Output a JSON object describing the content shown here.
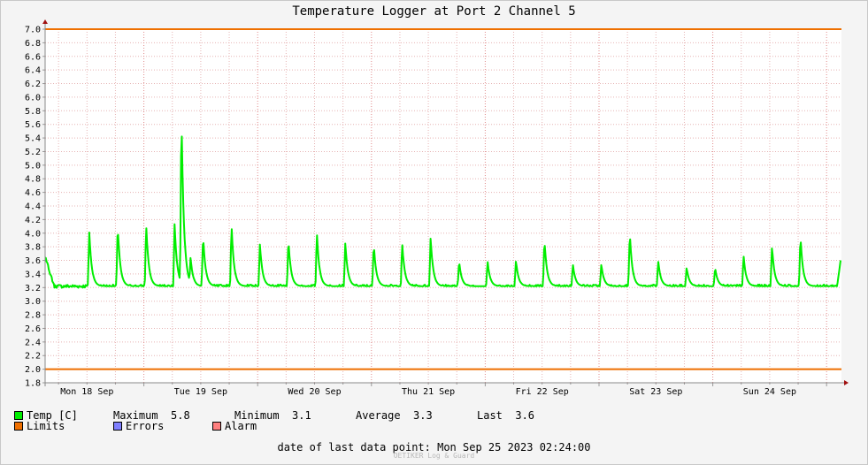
{
  "chart_data": {
    "type": "line",
    "title": "Temperature Logger at Port 2 Channel 5",
    "ylim": [
      1.8,
      7.0
    ],
    "y_ticks": [
      "7.0",
      "6.8",
      "6.6",
      "6.4",
      "6.2",
      "6.0",
      "5.8",
      "5.6",
      "5.4",
      "5.2",
      "5.0",
      "4.8",
      "4.6",
      "4.4",
      "4.2",
      "4.0",
      "3.8",
      "3.6",
      "3.4",
      "3.2",
      "3.0",
      "2.8",
      "2.6",
      "2.4",
      "2.2",
      "2.0",
      "1.8"
    ],
    "x_labels": [
      "Mon 18 Sep",
      "Tue 19 Sep",
      "Wed 20 Sep",
      "Thu 21 Sep",
      "Fri 22 Sep",
      "Sat 23 Sep",
      "Sun 24 Sep"
    ],
    "grid": true,
    "limits": {
      "upper": 7.0,
      "lower": 2.0,
      "color": "#ee6f00"
    },
    "series": [
      {
        "name": "Temp [C]",
        "color": "#00ee00",
        "baseline": 3.22,
        "start_value": 3.65,
        "end_value": 3.6,
        "spikes": [
          {
            "day": 0.52,
            "value": 4.02
          },
          {
            "day": 0.77,
            "value": 4.13
          },
          {
            "day": 1.02,
            "value": 4.15
          },
          {
            "day": 1.27,
            "value": 4.15
          },
          {
            "day": 1.33,
            "value": 5.78
          },
          {
            "day": 1.41,
            "value": 3.65
          },
          {
            "day": 1.52,
            "value": 3.98
          },
          {
            "day": 1.77,
            "value": 4.13
          },
          {
            "day": 2.02,
            "value": 3.85
          },
          {
            "day": 2.27,
            "value": 3.92
          },
          {
            "day": 2.52,
            "value": 4.03
          },
          {
            "day": 2.77,
            "value": 3.87
          },
          {
            "day": 3.02,
            "value": 3.85
          },
          {
            "day": 3.27,
            "value": 3.87
          },
          {
            "day": 3.52,
            "value": 3.95
          },
          {
            "day": 3.77,
            "value": 3.6
          },
          {
            "day": 4.02,
            "value": 3.6
          },
          {
            "day": 4.27,
            "value": 3.6
          },
          {
            "day": 4.52,
            "value": 3.92
          },
          {
            "day": 4.77,
            "value": 3.55
          },
          {
            "day": 5.02,
            "value": 3.55
          },
          {
            "day": 5.27,
            "value": 4.03
          },
          {
            "day": 5.52,
            "value": 3.6
          },
          {
            "day": 5.77,
            "value": 3.5
          },
          {
            "day": 6.02,
            "value": 3.5
          },
          {
            "day": 6.27,
            "value": 3.68
          },
          {
            "day": 6.52,
            "value": 3.82
          },
          {
            "day": 6.77,
            "value": 3.97
          }
        ]
      }
    ],
    "stats": {
      "name": "Temp [C]",
      "maximum_label": "Maximum",
      "maximum": "5.8",
      "minimum_label": "Minimum",
      "minimum": "3.1",
      "average_label": "Average",
      "average": "3.3",
      "last_label": "Last",
      "last": "3.6"
    },
    "legend": [
      {
        "label": "Limits",
        "color": "#ee6f00"
      },
      {
        "label": "Errors",
        "color": "#7f7fff"
      },
      {
        "label": "Alarm",
        "color": "#ff7f7f"
      }
    ],
    "footer": "date of last data point:  Mon Sep 25 2023 02:24:00",
    "credit": "OETIKER Log & Guard"
  }
}
